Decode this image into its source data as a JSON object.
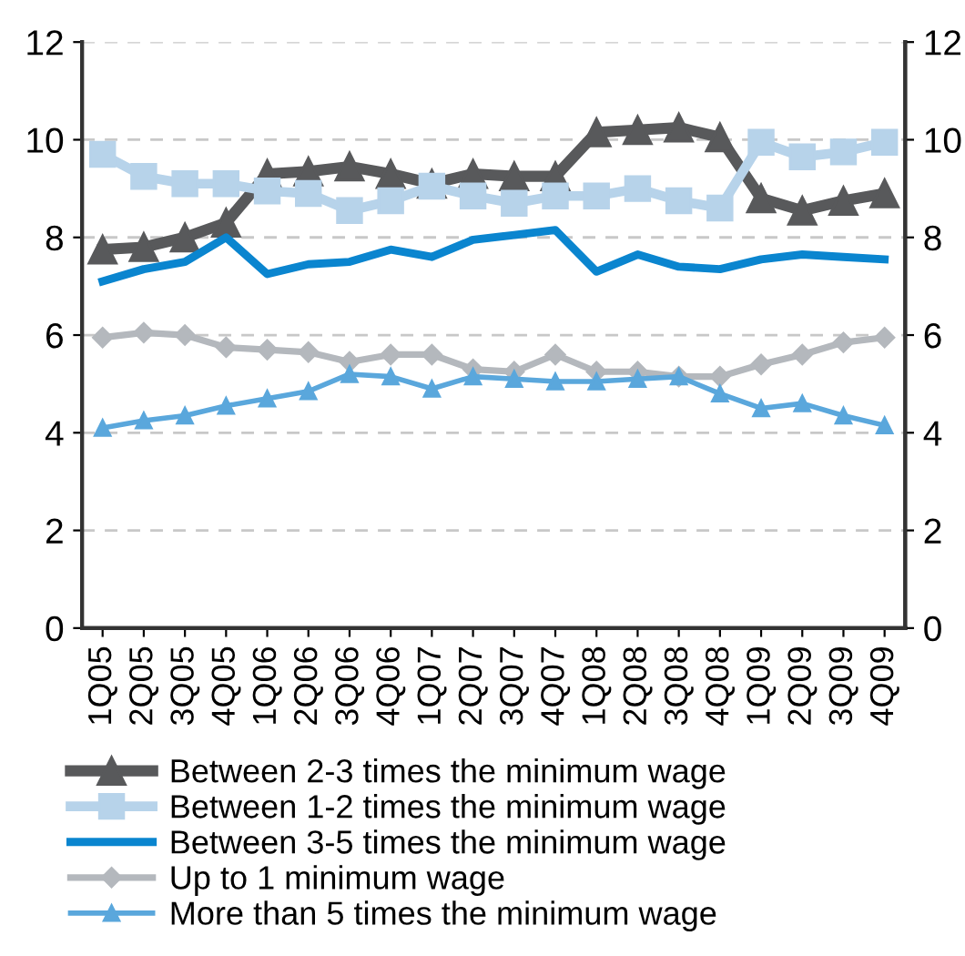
{
  "chart_data": {
    "type": "line",
    "categories": [
      "1Q05",
      "2Q05",
      "3Q05",
      "4Q05",
      "1Q06",
      "2Q06",
      "3Q06",
      "4Q06",
      "1Q07",
      "2Q07",
      "3Q07",
      "4Q07",
      "1Q08",
      "2Q08",
      "3Q08",
      "4Q08",
      "1Q09",
      "2Q09",
      "3Q09",
      "4Q09"
    ],
    "series": [
      {
        "name": "Between 2-3 times the minimum wage",
        "color": "#58595b",
        "marker": "triangle",
        "values": [
          7.75,
          7.8,
          8.0,
          8.3,
          9.3,
          9.35,
          9.45,
          9.3,
          9.1,
          9.3,
          9.25,
          9.25,
          10.15,
          10.2,
          10.25,
          10.05,
          8.8,
          8.55,
          8.75,
          8.9
        ]
      },
      {
        "name": "Between 1-2 times the minimum wage",
        "color": "#b7d3ea",
        "marker": "square",
        "values": [
          9.7,
          9.25,
          9.1,
          9.1,
          8.95,
          8.9,
          8.55,
          8.75,
          9.05,
          8.85,
          8.7,
          8.85,
          8.85,
          9.0,
          8.75,
          8.6,
          9.95,
          9.65,
          9.75,
          9.95
        ]
      },
      {
        "name": "Between 3-5 times the minimum wage",
        "color": "#0a85cf",
        "marker": "none",
        "values": [
          7.1,
          7.35,
          7.5,
          8.0,
          7.25,
          7.45,
          7.5,
          7.75,
          7.6,
          7.95,
          8.05,
          8.15,
          7.3,
          7.65,
          7.4,
          7.35,
          7.55,
          7.65,
          7.6,
          7.55
        ]
      },
      {
        "name": "Up to 1 minimum wage",
        "color": "#b4b8bd",
        "marker": "diamond",
        "values": [
          5.95,
          6.05,
          6.0,
          5.75,
          5.7,
          5.65,
          5.45,
          5.6,
          5.6,
          5.3,
          5.25,
          5.6,
          5.25,
          5.25,
          5.15,
          5.15,
          5.4,
          5.6,
          5.85,
          5.95
        ]
      },
      {
        "name": "More than 5 times the minimum wage",
        "color": "#5aa7dc",
        "marker": "triangle",
        "values": [
          4.1,
          4.25,
          4.35,
          4.55,
          4.7,
          4.85,
          5.2,
          5.15,
          4.9,
          5.15,
          5.1,
          5.05,
          5.05,
          5.1,
          5.15,
          4.8,
          4.5,
          4.6,
          4.35,
          4.15
        ]
      }
    ],
    "ylim": [
      0,
      12
    ],
    "yticks": [
      0,
      2,
      4,
      6,
      8,
      10,
      12
    ],
    "y2lim": [
      0,
      12
    ],
    "y2ticks": [
      0,
      2,
      4,
      6,
      8,
      10,
      12
    ],
    "grid": "y",
    "legend": "bottom",
    "line_style": "solid"
  }
}
